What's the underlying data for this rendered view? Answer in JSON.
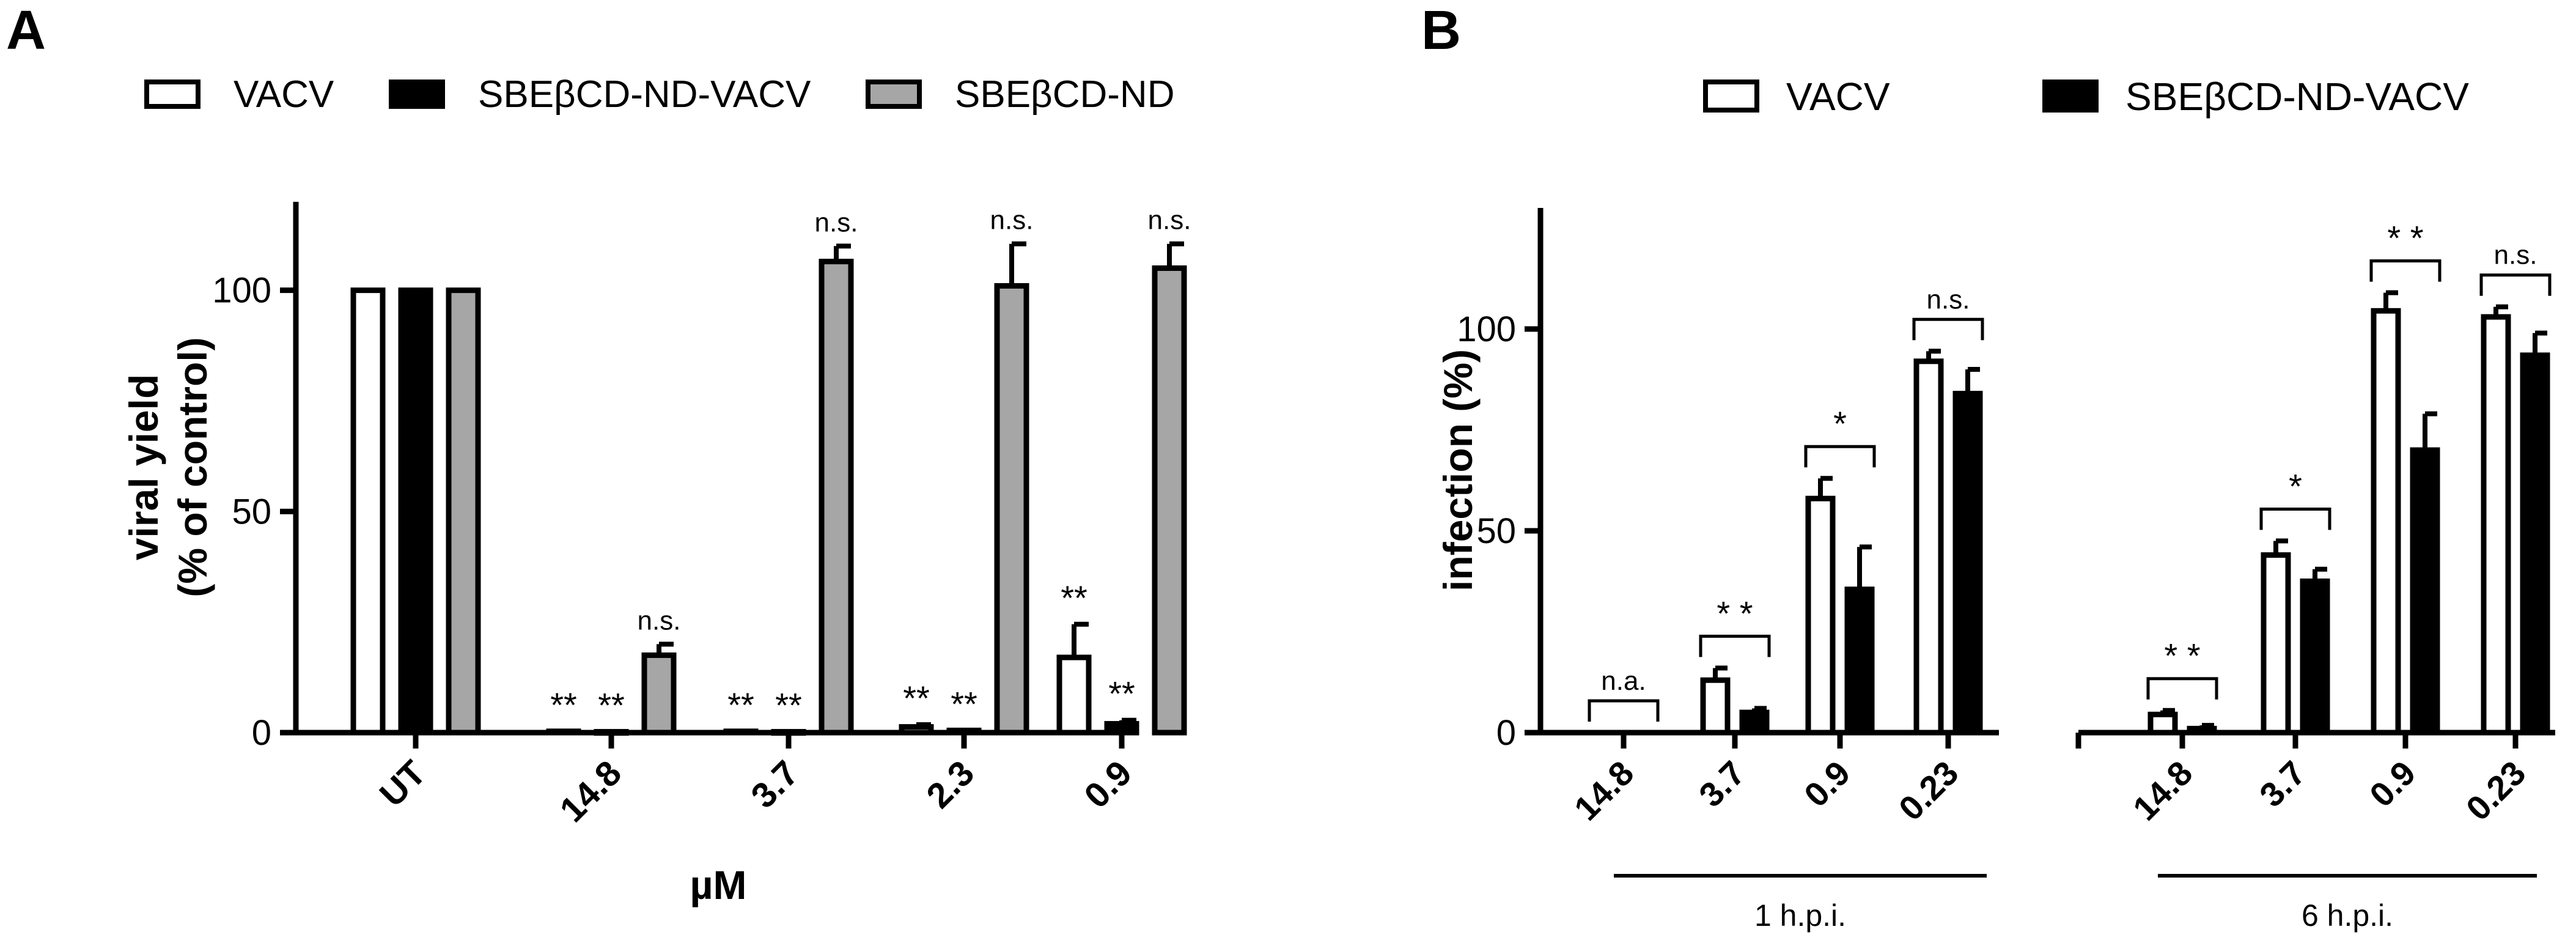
{
  "panels": {
    "a": {
      "letter": "A"
    },
    "b": {
      "letter": "B"
    }
  },
  "colors": {
    "vacv": "#ffffff",
    "sbe_vacv": "#000000",
    "sbe_nd": "#a6a6a6",
    "axis": "#000000"
  },
  "chart_data": [
    {
      "type": "bar",
      "panel": "A",
      "legend": [
        "VACV",
        "SBEβCD-ND-VACV",
        "SBEβCD-ND"
      ],
      "categories": [
        "UT",
        "14.8",
        "3.7",
        "2.3",
        "0.9"
      ],
      "series": [
        {
          "name": "VACV",
          "values": [
            100,
            0.3,
            0.3,
            1.3,
            17
          ],
          "errors": [
            0,
            0,
            0,
            0.5,
            7.5
          ],
          "annotations": [
            "",
            "**",
            "**",
            "**",
            "**"
          ]
        },
        {
          "name": "SBEβCD-ND-VACV",
          "values": [
            100,
            0.2,
            0.2,
            0.5,
            2
          ],
          "errors": [
            0,
            0,
            0,
            0,
            0.8
          ],
          "annotations": [
            "",
            "**",
            "**",
            "**",
            "**"
          ]
        },
        {
          "name": "SBEβCD-ND",
          "values": [
            100,
            17.5,
            106.5,
            101,
            105
          ],
          "errors": [
            0,
            2.5,
            3.5,
            9.5,
            5.5
          ],
          "annotations": [
            "",
            "n.s.",
            "n.s.",
            "n.s.",
            "n.s."
          ]
        }
      ],
      "xlabel": "µM",
      "ylabel": [
        "viral yield",
        "(% of control)"
      ],
      "ylim": [
        0,
        120
      ],
      "yticks": [
        0,
        50,
        100
      ],
      "legend_position": "top"
    },
    {
      "type": "bar",
      "panel": "B",
      "legend": [
        "VACV",
        "SBEβCD-ND-VACV"
      ],
      "groups": [
        {
          "label": "1 h.p.i.",
          "categories": [
            "14.8",
            "3.7",
            "0.9",
            "0.23"
          ]
        },
        {
          "label": "6 h.p.i.",
          "categories": [
            "14.8",
            "3.7",
            "0.9",
            "0.23"
          ]
        }
      ],
      "series": [
        {
          "name": "VACV",
          "values": [
            0,
            13,
            58,
            92,
            4.5,
            44,
            104.5,
            103
          ],
          "errors": [
            0,
            3,
            5,
            2.5,
            1,
            3.5,
            4.5,
            2.5
          ]
        },
        {
          "name": "SBEβCD-ND-VACV",
          "values": [
            0,
            5,
            35.5,
            84,
            1,
            37.5,
            70,
            93.5
          ],
          "errors": [
            0,
            1,
            10.5,
            6,
            0.8,
            3,
            9,
            5.5
          ]
        }
      ],
      "significance": [
        "n.a.",
        "* *",
        "*",
        "n.s.",
        "* *",
        "*",
        "* *",
        "n.s."
      ],
      "ylabel": "infection (%)",
      "ylim": [
        0,
        130
      ],
      "yticks": [
        0,
        50,
        100
      ],
      "legend_position": "top"
    }
  ]
}
